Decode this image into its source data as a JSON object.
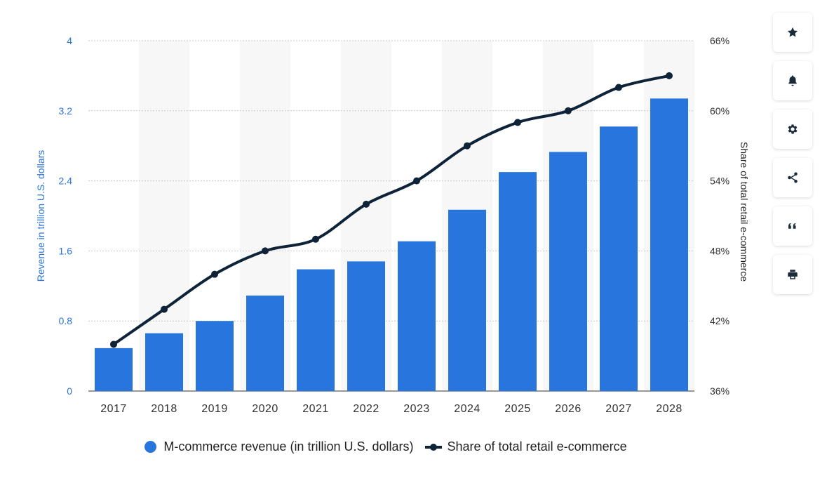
{
  "chart_data": {
    "type": "bar",
    "categories": [
      "2017",
      "2018",
      "2019",
      "2020",
      "2021",
      "2022",
      "2023",
      "2024",
      "2025",
      "2026",
      "2027",
      "2028"
    ],
    "series": [
      {
        "name": "M-commerce revenue (in trillion U.S. dollars)",
        "type": "bar",
        "axis": "left",
        "color": "#2876dd",
        "values": [
          0.49,
          0.66,
          0.8,
          1.09,
          1.39,
          1.48,
          1.71,
          2.07,
          2.5,
          2.73,
          3.02,
          3.34
        ]
      },
      {
        "name": "Share of total retail e-commerce",
        "type": "line",
        "axis": "right",
        "color": "#0e2238",
        "values": [
          40.0,
          43.0,
          46.0,
          48.0,
          49.0,
          52.0,
          54.0,
          57.0,
          59.0,
          60.0,
          62.0,
          63.0
        ]
      }
    ],
    "ylabel": "Revenue in trillion U.S. dollars",
    "ylim": [
      0,
      4
    ],
    "yticks": [
      "0",
      "0.8",
      "1.6",
      "2.4",
      "3.2",
      "4"
    ],
    "y2label": "Share of total retail e-commerce",
    "y2lim": [
      36,
      66
    ],
    "y2ticks": [
      "36%",
      "42%",
      "48%",
      "54%",
      "60%",
      "66%"
    ],
    "grid": "horizontal dotted",
    "legend_position": "bottom"
  },
  "legend": {
    "bar_label": "M-commerce revenue (in trillion U.S. dollars)",
    "line_label": "Share of total retail e-commerce"
  },
  "toolbar": [
    {
      "name": "star-icon",
      "label": "favorite"
    },
    {
      "name": "bell-icon",
      "label": "notification"
    },
    {
      "name": "gear-icon",
      "label": "settings"
    },
    {
      "name": "share-icon",
      "label": "share"
    },
    {
      "name": "quote-icon",
      "label": "cite"
    },
    {
      "name": "print-icon",
      "label": "print"
    }
  ],
  "colors": {
    "bar": "#2876dd",
    "line": "#0e2238",
    "alt_band": "#f7f7f7",
    "left_axis_text": "#2a74d9"
  }
}
